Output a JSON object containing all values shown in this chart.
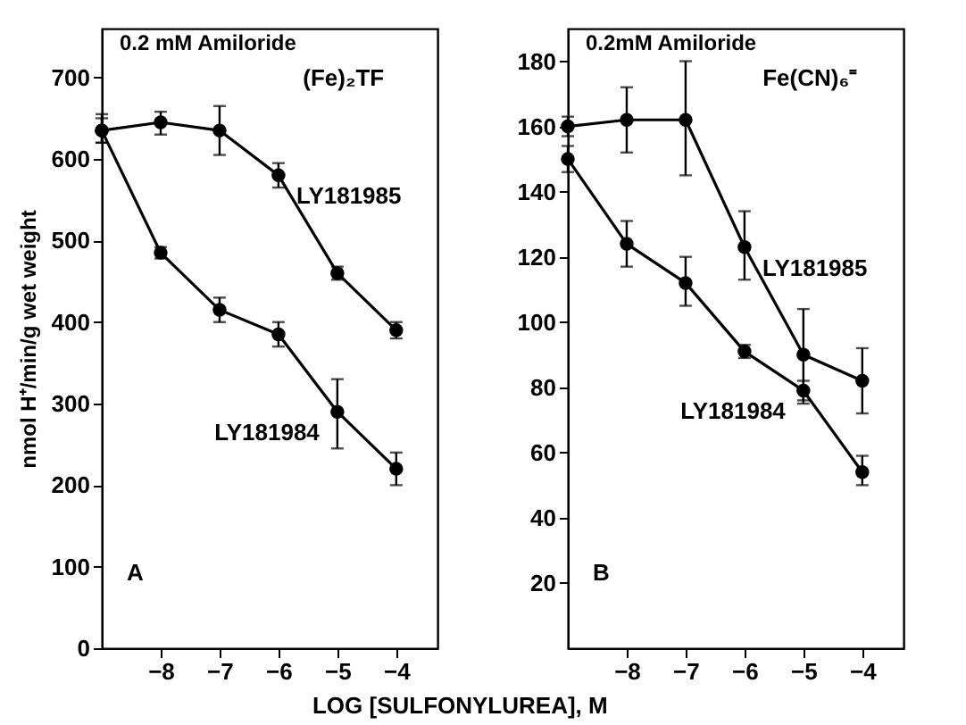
{
  "chart_data": [
    {
      "type": "line",
      "ylabel": "nmol H⁺/min/g wet weight",
      "xlabel": "LOG [SULFONYLUREA], M",
      "x": [
        -9,
        -8,
        -7,
        -6,
        -5,
        -4
      ],
      "xlim": [
        -9,
        -3.3
      ],
      "xticks": [
        -8,
        -7,
        -6,
        -5,
        -4
      ],
      "ylim": [
        0,
        760
      ],
      "yticks": [
        0,
        100,
        200,
        300,
        400,
        500,
        600,
        700
      ],
      "marker": "circle",
      "annotations": [
        "0.2 mM Amiloride",
        "(Fe)₂TF",
        "A"
      ],
      "series": [
        {
          "name": "LY181985",
          "color": "#000000",
          "values": [
            635,
            645,
            635,
            580,
            460,
            390
          ],
          "errors": [
            [
              620,
              655
            ],
            [
              630,
              658
            ],
            [
              605,
              665
            ],
            [
              565,
              595
            ],
            [
              452,
              468
            ],
            [
              380,
              400
            ]
          ]
        },
        {
          "name": "LY181984",
          "color": "#000000",
          "values": [
            635,
            485,
            415,
            385,
            290,
            220
          ],
          "errors": [
            [
              620,
              650
            ],
            [
              478,
              492
            ],
            [
              400,
              430
            ],
            [
              370,
              400
            ],
            [
              245,
              330
            ],
            [
              200,
              240
            ]
          ]
        }
      ]
    },
    {
      "type": "line",
      "x": [
        -9,
        -8,
        -7,
        -6,
        -5,
        -4
      ],
      "xlim": [
        -9,
        -3.3
      ],
      "xticks": [
        -8,
        -7,
        -6,
        -5,
        -4
      ],
      "ylim": [
        0,
        190
      ],
      "yticks": [
        20,
        40,
        60,
        80,
        100,
        120,
        140,
        160,
        180
      ],
      "marker": "circle",
      "annotations": [
        "0.2mM Amiloride",
        "Fe(CN)₆⁼",
        "B"
      ],
      "series": [
        {
          "name": "LY181985",
          "color": "#000000",
          "values": [
            160,
            162,
            162,
            123,
            90,
            82
          ],
          "errors": [
            [
              157,
              163
            ],
            [
              152,
              172
            ],
            [
              145,
              180
            ],
            [
              113,
              134
            ],
            [
              75,
              104
            ],
            [
              72,
              92
            ]
          ]
        },
        {
          "name": "LY181984",
          "color": "#000000",
          "values": [
            150,
            124,
            112,
            91,
            79,
            54
          ],
          "errors": [
            [
              146,
              154
            ],
            [
              117,
              131
            ],
            [
              105,
              120
            ],
            [
              89,
              93
            ],
            [
              76,
              82
            ],
            [
              50,
              59
            ]
          ]
        }
      ]
    }
  ]
}
